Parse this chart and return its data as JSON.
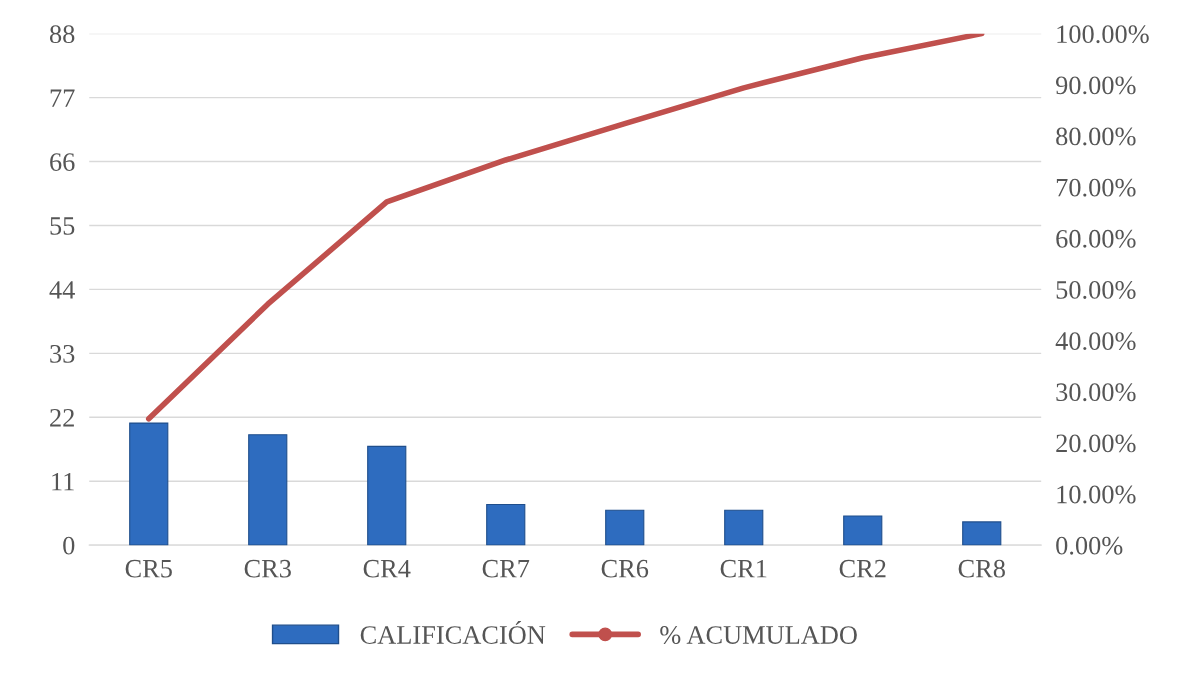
{
  "chart_data": {
    "type": "bar",
    "categories": [
      "CR5",
      "CR3",
      "CR4",
      "CR7",
      "CR6",
      "CR1",
      "CR2",
      "CR8"
    ],
    "series": [
      {
        "name": "CALIFICACIÓN",
        "color": "#2e6cbf",
        "values": [
          21,
          19,
          17,
          7,
          6,
          6,
          5,
          4
        ]
      },
      {
        "name": "% ACUMULADO",
        "type": "line",
        "axis": "y2",
        "color": "#c0504d",
        "values": [
          24.7,
          47.1,
          67.1,
          75.3,
          82.4,
          89.4,
          95.3,
          100
        ]
      }
    ],
    "ylim": [
      0,
      88
    ],
    "yticks": [
      0,
      11,
      22,
      33,
      44,
      55,
      66,
      77,
      88
    ],
    "y2lim": [
      0,
      100
    ],
    "y2ticks": [
      {
        "value": 0,
        "label": "0.00%"
      },
      {
        "value": 10,
        "label": "10.00%"
      },
      {
        "value": 20,
        "label": "20.00%"
      },
      {
        "value": 30,
        "label": "30.00%"
      },
      {
        "value": 40,
        "label": "40.00%"
      },
      {
        "value": 50,
        "label": "50.00%"
      },
      {
        "value": 60,
        "label": "60.00%"
      },
      {
        "value": 70,
        "label": "70.00%"
      },
      {
        "value": 80,
        "label": "80.00%"
      },
      {
        "value": 90,
        "label": "90.00%"
      },
      {
        "value": 100,
        "label": "100.00%"
      }
    ],
    "grid": "y",
    "legend": "bottom"
  }
}
